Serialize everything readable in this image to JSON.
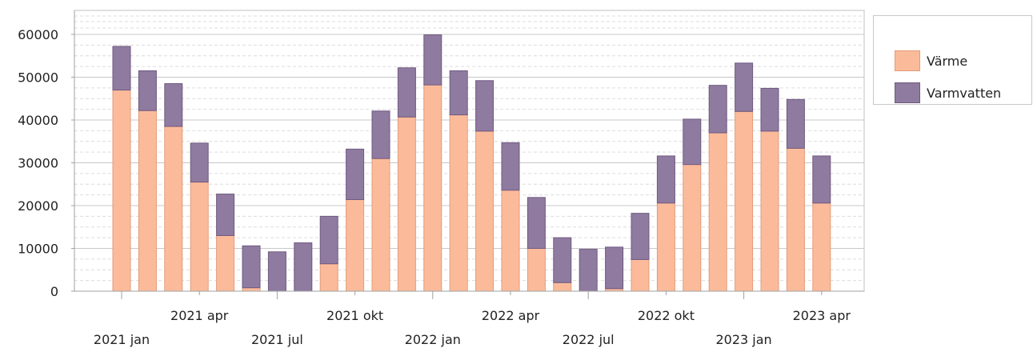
{
  "chart_data": {
    "type": "bar",
    "stacked": true,
    "title": "",
    "xlabel": "",
    "ylabel": "",
    "ylim": [
      0,
      60000
    ],
    "yticks": [
      0,
      10000,
      20000,
      30000,
      40000,
      50000,
      60000
    ],
    "grid": true,
    "legend_position": "right-top",
    "x_tick_labels": [
      {
        "label": "2021 jan",
        "index": 0
      },
      {
        "label": "2021 apr",
        "index": 3
      },
      {
        "label": "2021 jul",
        "index": 6
      },
      {
        "label": "2021 okt",
        "index": 9
      },
      {
        "label": "2022 jan",
        "index": 12
      },
      {
        "label": "2022 apr",
        "index": 15
      },
      {
        "label": "2022 jul",
        "index": 18
      },
      {
        "label": "2022 okt",
        "index": 21
      },
      {
        "label": "2023 jan",
        "index": 24
      },
      {
        "label": "2023 apr",
        "index": 27
      }
    ],
    "categories": [
      "2021-01",
      "2021-02",
      "2021-03",
      "2021-04",
      "2021-05",
      "2021-06",
      "2021-07",
      "2021-08",
      "2021-09",
      "2021-10",
      "2021-11",
      "2021-12",
      "2022-01",
      "2022-02",
      "2022-03",
      "2022-04",
      "2022-05",
      "2022-06",
      "2022-07",
      "2022-08",
      "2022-09",
      "2022-10",
      "2022-11",
      "2022-12",
      "2023-01",
      "2023-02",
      "2023-03",
      "2023-04"
    ],
    "series": [
      {
        "name": "Värme",
        "color": "#FBBB9B",
        "values": [
          47000,
          42200,
          38500,
          25500,
          13000,
          800,
          0,
          0,
          6400,
          21400,
          31000,
          40700,
          48200,
          41200,
          37400,
          23600,
          10000,
          2000,
          0,
          600,
          7400,
          20600,
          29600,
          37000,
          42000,
          37400,
          33400,
          20600
        ]
      },
      {
        "name": "Varmvatten",
        "color": "#8F7AA0",
        "values": [
          10200,
          9300,
          10000,
          9100,
          9700,
          9800,
          9200,
          11300,
          11100,
          11800,
          11100,
          11500,
          11700,
          10300,
          11800,
          11100,
          11900,
          10500,
          9800,
          9700,
          10800,
          11000,
          10600,
          11100,
          11300,
          10000,
          11400,
          11000
        ]
      }
    ]
  }
}
